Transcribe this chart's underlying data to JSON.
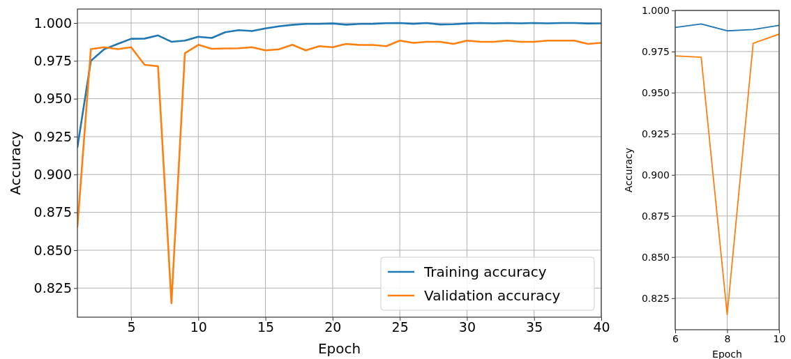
{
  "chart_data": [
    {
      "type": "line",
      "xlabel": "Epoch",
      "ylabel": "Accuracy",
      "x": [
        1,
        2,
        3,
        4,
        5,
        6,
        7,
        8,
        9,
        10,
        11,
        12,
        13,
        14,
        15,
        16,
        17,
        18,
        19,
        20,
        21,
        22,
        23,
        24,
        25,
        26,
        27,
        28,
        29,
        30,
        31,
        32,
        33,
        34,
        35,
        36,
        37,
        38,
        39,
        40
      ],
      "series": [
        {
          "name": "Training accuracy",
          "color": "#1f77b4",
          "values": [
            0.918,
            0.975,
            0.9827,
            0.9862,
            0.9896,
            0.9897,
            0.9918,
            0.9876,
            0.9884,
            0.9909,
            0.9901,
            0.9939,
            0.9953,
            0.9947,
            0.9964,
            0.9978,
            0.9988,
            0.9994,
            0.9994,
            0.9997,
            0.9989,
            0.9994,
            0.9995,
            0.9999,
            1.0,
            0.9995,
            1.0,
            0.999,
            0.9992,
            0.9997,
            1.0,
            0.9998,
            1.0,
            0.9998,
            1.0,
            0.9998,
            1.0,
            1.0,
            0.9997,
            0.9998
          ]
        },
        {
          "name": "Validation accuracy",
          "color": "#ff7f0e",
          "values": [
            0.8655,
            0.9827,
            0.984,
            0.9827,
            0.984,
            0.9724,
            0.9715,
            0.815,
            0.98,
            0.9856,
            0.983,
            0.9832,
            0.9833,
            0.984,
            0.9819,
            0.9826,
            0.9856,
            0.9819,
            0.9847,
            0.984,
            0.9862,
            0.9855,
            0.9855,
            0.9847,
            0.9884,
            0.9869,
            0.9876,
            0.9876,
            0.9862,
            0.9884,
            0.9876,
            0.9876,
            0.9884,
            0.9876,
            0.9876,
            0.9884,
            0.9884,
            0.9884,
            0.9862,
            0.9869
          ]
        }
      ],
      "xlim": [
        1,
        40
      ],
      "xticks": [
        5,
        10,
        15,
        20,
        25,
        30,
        35,
        40
      ],
      "ylim": [
        0.8058,
        1.0092
      ],
      "yticks": [
        {
          "value": 0.825,
          "label": "0.825"
        },
        {
          "value": 0.85,
          "label": "0.850"
        },
        {
          "value": 0.875,
          "label": "0.875"
        },
        {
          "value": 0.9,
          "label": "0.900"
        },
        {
          "value": 0.925,
          "label": "0.925"
        },
        {
          "value": 0.95,
          "label": "0.950"
        },
        {
          "value": 0.975,
          "label": "0.975"
        },
        {
          "value": 1.0,
          "label": "1.000"
        }
      ],
      "grid": true,
      "legend": "bottom right"
    },
    {
      "type": "line",
      "xlabel": "Epoch",
      "ylabel": "Accuracy",
      "x": [
        6,
        7,
        8,
        9,
        10
      ],
      "series": [
        {
          "color": "#1f77b4",
          "values": [
            0.9897,
            0.9918,
            0.9876,
            0.9884,
            0.9909
          ]
        },
        {
          "color": "#ff7f0e",
          "values": [
            0.9724,
            0.9715,
            0.815,
            0.98,
            0.9856
          ]
        }
      ],
      "xlim": [
        6,
        10
      ],
      "xticks": [
        6,
        8,
        10
      ],
      "ylim": [
        0.8058,
        1.0
      ],
      "yticks": [
        {
          "value": 0.825,
          "label": "0.825"
        },
        {
          "value": 0.85,
          "label": "0.850"
        },
        {
          "value": 0.875,
          "label": "0.875"
        },
        {
          "value": 0.9,
          "label": "0.900"
        },
        {
          "value": 0.925,
          "label": "0.925"
        },
        {
          "value": 0.95,
          "label": "0.950"
        },
        {
          "value": 0.975,
          "label": "0.975"
        },
        {
          "value": 1.0,
          "label": "1.000"
        }
      ],
      "grid": true
    }
  ]
}
